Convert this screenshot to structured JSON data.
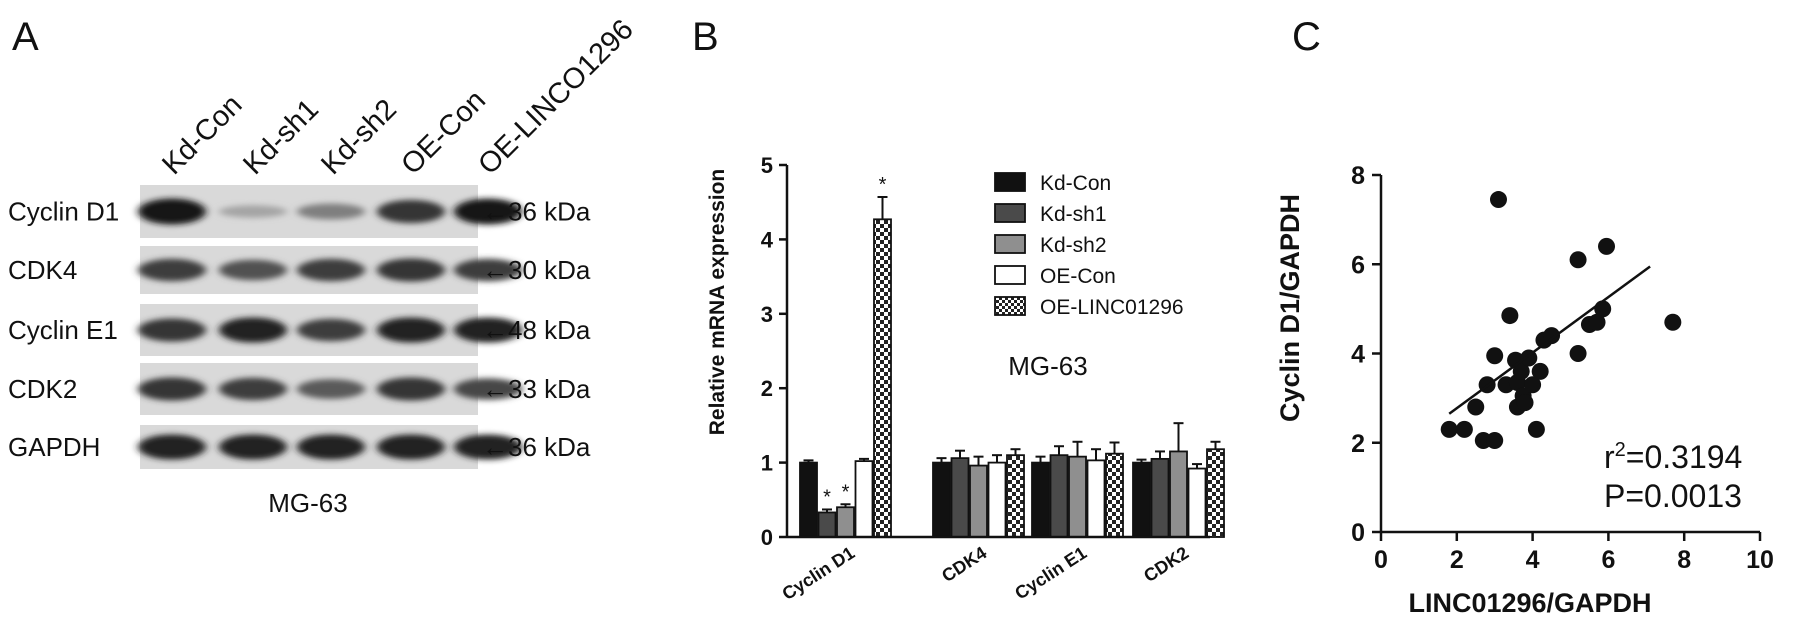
{
  "panels": {
    "A": {
      "letter": "A",
      "lanes": [
        "Kd-Con",
        "Kd-sh1",
        "Kd-sh2",
        "OE-Con",
        "OE-LINCO1296"
      ],
      "rows": [
        {
          "label": "Cyclin D1",
          "kda": "←36 kDa",
          "intensity": [
            1.0,
            0.25,
            0.45,
            0.85,
            1.0
          ]
        },
        {
          "label": "CDK4",
          "kda": "←30 kDa",
          "intensity": [
            0.8,
            0.7,
            0.8,
            0.85,
            0.8
          ]
        },
        {
          "label": "Cyclin E1",
          "kda": "←48 kDa",
          "intensity": [
            0.85,
            0.95,
            0.8,
            0.95,
            0.95
          ]
        },
        {
          "label": "CDK2",
          "kda": "←33 kDa",
          "intensity": [
            0.85,
            0.8,
            0.65,
            0.85,
            0.75
          ]
        },
        {
          "label": "GAPDH",
          "kda": "←36 kDa",
          "intensity": [
            0.95,
            0.95,
            0.95,
            0.95,
            0.95
          ]
        }
      ],
      "caption": "MG-63"
    },
    "B": {
      "letter": "B"
    },
    "C": {
      "letter": "C"
    }
  },
  "chart_data": [
    {
      "type": "bar",
      "ylabel": "Relative mRNA expression",
      "ylim": [
        0,
        5
      ],
      "yticks": [
        "0",
        "1",
        "2",
        "3",
        "4",
        "5"
      ],
      "categories": [
        "Cyclin D1",
        "CDK4",
        "Cyclin E1",
        "CDK2"
      ],
      "annotation": "MG-63",
      "series": [
        {
          "name": "Kd-Con",
          "values": [
            1.0,
            1.0,
            1.0,
            1.0
          ],
          "errors": [
            0.03,
            0.06,
            0.08,
            0.04
          ],
          "fill": "#111111",
          "marks": [
            "",
            "",
            "",
            ""
          ]
        },
        {
          "name": "Kd-sh1",
          "values": [
            0.33,
            1.06,
            1.1,
            1.05
          ],
          "errors": [
            0.04,
            0.1,
            0.12,
            0.1
          ],
          "fill": "#4a4a4a",
          "marks": [
            "*",
            "",
            "",
            ""
          ]
        },
        {
          "name": "Kd-sh2",
          "values": [
            0.4,
            0.96,
            1.08,
            1.15
          ],
          "errors": [
            0.04,
            0.12,
            0.2,
            0.38
          ],
          "fill": "#8f8f8f",
          "marks": [
            "*",
            "",
            "",
            ""
          ]
        },
        {
          "name": "OE-Con",
          "values": [
            1.02,
            1.0,
            1.03,
            0.92
          ],
          "errors": [
            0.03,
            0.1,
            0.15,
            0.06
          ],
          "fill": "#ffffff",
          "marks": [
            "",
            "",
            "",
            ""
          ]
        },
        {
          "name": "OE-LINC01296",
          "values": [
            4.27,
            1.1,
            1.12,
            1.18
          ],
          "errors": [
            0.3,
            0.08,
            0.15,
            0.1
          ],
          "fill": "checker",
          "marks": [
            "*",
            "",
            "",
            ""
          ]
        }
      ],
      "legend_placement": "top-right"
    },
    {
      "type": "scatter",
      "xlabel": "LINC01296/GAPDH",
      "ylabel": "Cyclin D1/GAPDH",
      "xlim": [
        0,
        10
      ],
      "ylim": [
        0,
        8
      ],
      "xticks": [
        "0",
        "2",
        "4",
        "6",
        "8",
        "10"
      ],
      "yticks": [
        "0",
        "2",
        "4",
        "6",
        "8"
      ],
      "points": [
        [
          1.8,
          2.3
        ],
        [
          2.2,
          2.3
        ],
        [
          2.5,
          2.8
        ],
        [
          2.7,
          2.05
        ],
        [
          2.8,
          3.3
        ],
        [
          3.0,
          2.05
        ],
        [
          3.0,
          3.95
        ],
        [
          3.1,
          7.45
        ],
        [
          3.3,
          3.3
        ],
        [
          3.4,
          4.85
        ],
        [
          3.55,
          3.85
        ],
        [
          3.6,
          2.8
        ],
        [
          3.6,
          3.35
        ],
        [
          3.7,
          3.6
        ],
        [
          3.75,
          3.05
        ],
        [
          3.8,
          2.9
        ],
        [
          3.9,
          3.9
        ],
        [
          4.0,
          3.3
        ],
        [
          4.1,
          2.3
        ],
        [
          4.2,
          3.6
        ],
        [
          4.3,
          4.3
        ],
        [
          4.5,
          4.4
        ],
        [
          5.2,
          4.0
        ],
        [
          5.2,
          6.1
        ],
        [
          5.5,
          4.65
        ],
        [
          5.7,
          4.7
        ],
        [
          5.85,
          5.0
        ],
        [
          5.95,
          6.4
        ],
        [
          7.7,
          4.7
        ]
      ],
      "fit_line": {
        "x": [
          1.8,
          7.1
        ],
        "y": [
          2.65,
          5.95
        ]
      },
      "r2_label": "r",
      "r2_sup": "2",
      "r2_value": "=0.3194",
      "p_label": "P=0.0013"
    }
  ]
}
